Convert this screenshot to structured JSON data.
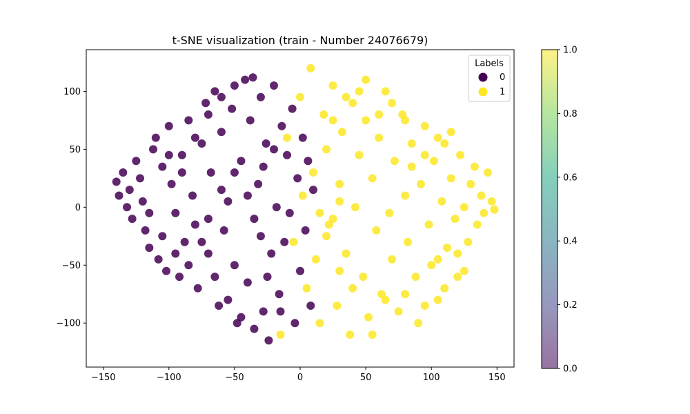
{
  "chart_data": {
    "type": "scatter",
    "title": "t-SNE visualization (train - Number 24076679)",
    "xlabel": "",
    "ylabel": "",
    "xlim": [
      -163,
      163
    ],
    "ylim": [
      -138,
      136
    ],
    "x_ticks": [
      -150,
      -100,
      -50,
      0,
      50,
      100,
      150
    ],
    "y_ticks": [
      -100,
      -50,
      0,
      50,
      100
    ],
    "grid": false,
    "legend": {
      "title": "Labels",
      "placement": "top-right",
      "entries": [
        {
          "label": "0",
          "color": "#440154"
        },
        {
          "label": "1",
          "color": "#fde725"
        }
      ]
    },
    "colorbar": {
      "range": [
        0.0,
        1.0
      ],
      "ticks": [
        "0.0",
        "0.2",
        "0.4",
        "0.6",
        "0.8",
        "1.0"
      ],
      "colormap": "viridis"
    },
    "series": [
      {
        "label": "0",
        "color": "#440154",
        "points": [
          [
            -140,
            22
          ],
          [
            -138,
            10
          ],
          [
            -135,
            30
          ],
          [
            -132,
            0
          ],
          [
            -130,
            15
          ],
          [
            -128,
            -10
          ],
          [
            -125,
            40
          ],
          [
            -122,
            25
          ],
          [
            -120,
            5
          ],
          [
            -118,
            -20
          ],
          [
            -115,
            -35
          ],
          [
            -112,
            50
          ],
          [
            -110,
            60
          ],
          [
            -108,
            -45
          ],
          [
            -105,
            35
          ],
          [
            -102,
            -55
          ],
          [
            -100,
            70
          ],
          [
            -98,
            20
          ],
          [
            -95,
            -5
          ],
          [
            -92,
            -60
          ],
          [
            -90,
            45
          ],
          [
            -88,
            -30
          ],
          [
            -85,
            75
          ],
          [
            -82,
            10
          ],
          [
            -80,
            -15
          ],
          [
            -78,
            -70
          ],
          [
            -75,
            55
          ],
          [
            -72,
            90
          ],
          [
            -70,
            -40
          ],
          [
            -68,
            30
          ],
          [
            -65,
            100
          ],
          [
            -62,
            -85
          ],
          [
            -60,
            65
          ],
          [
            -58,
            -20
          ],
          [
            -55,
            5
          ],
          [
            -52,
            85
          ],
          [
            -50,
            -50
          ],
          [
            -48,
            -100
          ],
          [
            -45,
            40
          ],
          [
            -42,
            110
          ],
          [
            -40,
            -65
          ],
          [
            -38,
            75
          ],
          [
            -35,
            -10
          ],
          [
            -32,
            20
          ],
          [
            -30,
            95
          ],
          [
            -28,
            -90
          ],
          [
            -26,
            55
          ],
          [
            -24,
            -115
          ],
          [
            -22,
            -40
          ],
          [
            -20,
            105
          ],
          [
            -18,
            0
          ],
          [
            -16,
            -75
          ],
          [
            -14,
            70
          ],
          [
            -12,
            -30
          ],
          [
            -10,
            45
          ],
          [
            -8,
            -5
          ],
          [
            -6,
            85
          ],
          [
            -4,
            -100
          ],
          [
            -2,
            25
          ],
          [
            0,
            -55
          ],
          [
            2,
            60
          ],
          [
            4,
            -20
          ],
          [
            6,
            40
          ],
          [
            8,
            -85
          ],
          [
            10,
            15
          ],
          [
            -115,
            -5
          ],
          [
            -105,
            -25
          ],
          [
            -95,
            -40
          ],
          [
            -85,
            -50
          ],
          [
            -75,
            -30
          ],
          [
            -65,
            -60
          ],
          [
            -55,
            -80
          ],
          [
            -45,
            -95
          ],
          [
            -35,
            -105
          ],
          [
            -60,
            15
          ],
          [
            -50,
            30
          ],
          [
            -40,
            10
          ],
          [
            -30,
            -25
          ],
          [
            -70,
            -10
          ],
          [
            -100,
            45
          ],
          [
            -90,
            30
          ],
          [
            -80,
            60
          ],
          [
            -70,
            80
          ],
          [
            -60,
            95
          ],
          [
            -50,
            105
          ],
          [
            -36,
            112
          ],
          [
            -25,
            -60
          ],
          [
            -15,
            -90
          ],
          [
            -28,
            35
          ],
          [
            -20,
            50
          ]
        ]
      },
      {
        "label": "1",
        "color": "#fde725",
        "points": [
          [
            -15,
            -110
          ],
          [
            -10,
            60
          ],
          [
            -5,
            -30
          ],
          [
            0,
            95
          ],
          [
            2,
            10
          ],
          [
            5,
            -70
          ],
          [
            8,
            120
          ],
          [
            10,
            30
          ],
          [
            12,
            -45
          ],
          [
            15,
            -100
          ],
          [
            18,
            80
          ],
          [
            20,
            50
          ],
          [
            22,
            -15
          ],
          [
            25,
            105
          ],
          [
            28,
            -85
          ],
          [
            30,
            20
          ],
          [
            32,
            65
          ],
          [
            35,
            -40
          ],
          [
            38,
            -110
          ],
          [
            40,
            90
          ],
          [
            42,
            0
          ],
          [
            45,
            45
          ],
          [
            48,
            -60
          ],
          [
            50,
            75
          ],
          [
            52,
            -95
          ],
          [
            55,
            25
          ],
          [
            58,
            -20
          ],
          [
            60,
            60
          ],
          [
            62,
            -75
          ],
          [
            65,
            100
          ],
          [
            68,
            -5
          ],
          [
            70,
            -45
          ],
          [
            72,
            40
          ],
          [
            75,
            -90
          ],
          [
            78,
            80
          ],
          [
            80,
            10
          ],
          [
            82,
            -30
          ],
          [
            85,
            55
          ],
          [
            88,
            -60
          ],
          [
            90,
            -100
          ],
          [
            92,
            20
          ],
          [
            95,
            70
          ],
          [
            98,
            -15
          ],
          [
            100,
            -50
          ],
          [
            102,
            40
          ],
          [
            105,
            -80
          ],
          [
            108,
            5
          ],
          [
            110,
            55
          ],
          [
            112,
            -35
          ],
          [
            115,
            25
          ],
          [
            118,
            -10
          ],
          [
            120,
            -60
          ],
          [
            122,
            45
          ],
          [
            125,
            0
          ],
          [
            128,
            -30
          ],
          [
            130,
            20
          ],
          [
            133,
            35
          ],
          [
            135,
            -15
          ],
          [
            138,
            10
          ],
          [
            140,
            -5
          ],
          [
            143,
            30
          ],
          [
            146,
            5
          ],
          [
            148,
            -2
          ],
          [
            30,
            -55
          ],
          [
            40,
            -70
          ],
          [
            55,
            -110
          ],
          [
            65,
            -80
          ],
          [
            80,
            -75
          ],
          [
            95,
            -85
          ],
          [
            105,
            -45
          ],
          [
            110,
            -70
          ],
          [
            120,
            -40
          ],
          [
            125,
            -55
          ],
          [
            85,
            35
          ],
          [
            95,
            45
          ],
          [
            105,
            60
          ],
          [
            115,
            65
          ],
          [
            60,
            80
          ],
          [
            70,
            90
          ],
          [
            80,
            75
          ],
          [
            45,
            100
          ],
          [
            50,
            110
          ],
          [
            35,
            95
          ],
          [
            25,
            75
          ],
          [
            20,
            -25
          ],
          [
            15,
            -5
          ],
          [
            25,
            -10
          ],
          [
            30,
            5
          ]
        ]
      }
    ]
  }
}
